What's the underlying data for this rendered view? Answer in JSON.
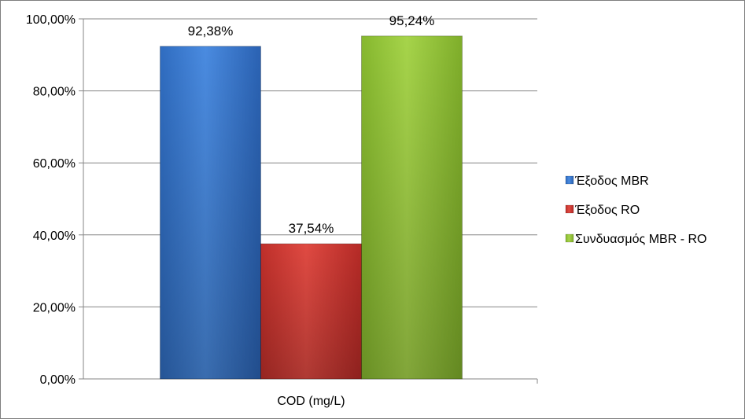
{
  "chart_data": {
    "type": "bar",
    "categories": [
      "COD (mg/L)"
    ],
    "series": [
      {
        "name": "Έξοδος MBR",
        "values": [
          92.38
        ],
        "color": "#4a86d8"
      },
      {
        "name": "Έξοδος RO",
        "values": [
          37.54
        ],
        "color": "#d9443d"
      },
      {
        "name": "Συνδυασμός MBR - RO",
        "values": [
          95.24
        ],
        "color": "#9bcc3c"
      }
    ],
    "data_labels": [
      "92,38%",
      "37,54%",
      "95,24%"
    ],
    "ylim": [
      0,
      100
    ],
    "yticks": [
      0,
      20,
      40,
      60,
      80,
      100
    ],
    "ytick_labels": [
      "0,00%",
      "20,00%",
      "40,00%",
      "60,00%",
      "80,00%",
      "100,00%"
    ],
    "grid": true,
    "legend_position": "right",
    "title": "",
    "xlabel": "",
    "ylabel": ""
  }
}
